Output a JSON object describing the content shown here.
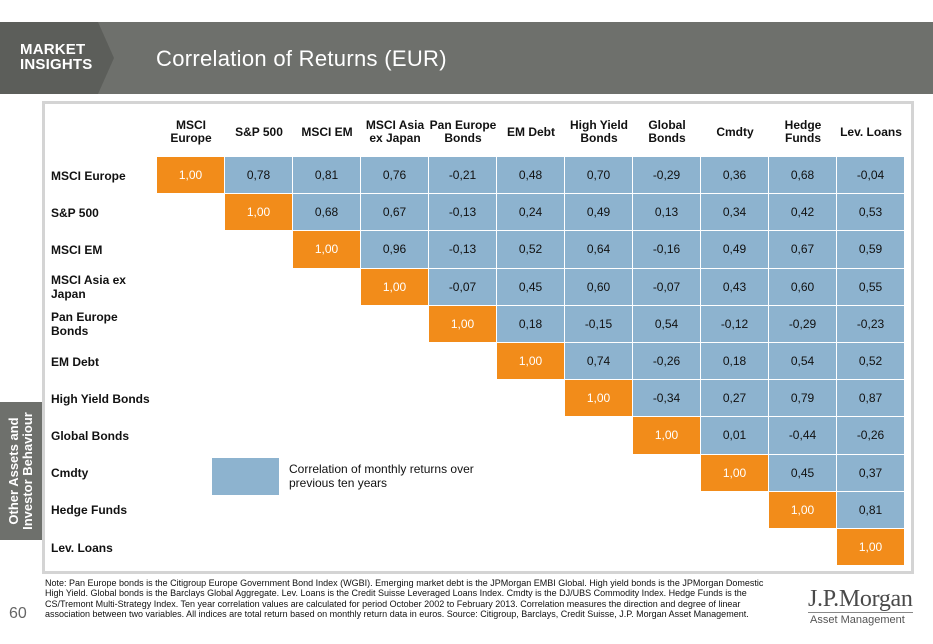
{
  "header": {
    "brand": "MARKET INSIGHTS",
    "title": "Correlation of Returns (EUR)"
  },
  "sidebar": {
    "section_label": "Other Assets and Investor Behaviour"
  },
  "matrix": {
    "columns": [
      "MSCI Europe",
      "S&P 500",
      "MSCI EM",
      "MSCI Asia ex Japan",
      "Pan Europe Bonds",
      "EM Debt",
      "High Yield Bonds",
      "Global Bonds",
      "Cmdty",
      "Hedge Funds",
      "Lev. Loans"
    ],
    "rows": [
      {
        "label": "MSCI Europe",
        "values": [
          "1,00",
          "0,78",
          "0,81",
          "0,76",
          "-0,21",
          "0,48",
          "0,70",
          "-0,29",
          "0,36",
          "0,68",
          "-0,04"
        ]
      },
      {
        "label": "S&P 500",
        "values": [
          "1,00",
          "0,68",
          "0,67",
          "-0,13",
          "0,24",
          "0,49",
          "0,13",
          "0,34",
          "0,42",
          "0,53"
        ]
      },
      {
        "label": "MSCI EM",
        "values": [
          "1,00",
          "0,96",
          "-0,13",
          "0,52",
          "0,64",
          "-0,16",
          "0,49",
          "0,67",
          "0,59"
        ]
      },
      {
        "label": "MSCI Asia ex Japan",
        "values": [
          "1,00",
          "-0,07",
          "0,45",
          "0,60",
          "-0,07",
          "0,43",
          "0,60",
          "0,55"
        ]
      },
      {
        "label": "Pan Europe Bonds",
        "values": [
          "1,00",
          "0,18",
          "-0,15",
          "0,54",
          "-0,12",
          "-0,29",
          "-0,23"
        ]
      },
      {
        "label": "EM Debt",
        "values": [
          "1,00",
          "0,74",
          "-0,26",
          "0,18",
          "0,54",
          "0,52"
        ]
      },
      {
        "label": "High Yield Bonds",
        "values": [
          "1,00",
          "-0,34",
          "0,27",
          "0,79",
          "0,87"
        ]
      },
      {
        "label": "Global Bonds",
        "values": [
          "1,00",
          "0,01",
          "-0,44",
          "-0,26"
        ]
      },
      {
        "label": "Cmdty",
        "values": [
          "1,00",
          "0,45",
          "0,37"
        ]
      },
      {
        "label": "Hedge Funds",
        "values": [
          "1,00",
          "0,81"
        ]
      },
      {
        "label": "Lev. Loans",
        "values": [
          "1,00"
        ]
      }
    ]
  },
  "legend": {
    "text": "Correlation of monthly returns over previous ten years"
  },
  "footer": {
    "page_number": "60",
    "note": "Note: Pan Europe bonds is the Citigroup Europe Government Bond Index (WGBI). Emerging market debt is the JPMorgan EMBI Global. High yield bonds is the JPMorgan Domestic High Yield. Global bonds is the Barclays Global Aggregate. Lev. Loans is the Credit Suisse Leveraged Loans Index. Cmdty is the DJ/UBS Commodity Index. Hedge Funds is the CS/Tremont Multi-Strategy Index. Ten year correlation values are calculated for period October 2002 to February 2013. Correlation measures the direction and degree of linear association between two variables. All indices are total return based on monthly return data in euros. Source: Citigroup, Barclays, Credit Suisse, J.P. Morgan Asset Management.",
    "logo_main": "J.P.Morgan",
    "logo_sub": "Asset Management"
  },
  "colors": {
    "header_gray": "#6e706c",
    "cell_blue": "#8db3cf",
    "diagonal_orange": "#f28c1a"
  }
}
